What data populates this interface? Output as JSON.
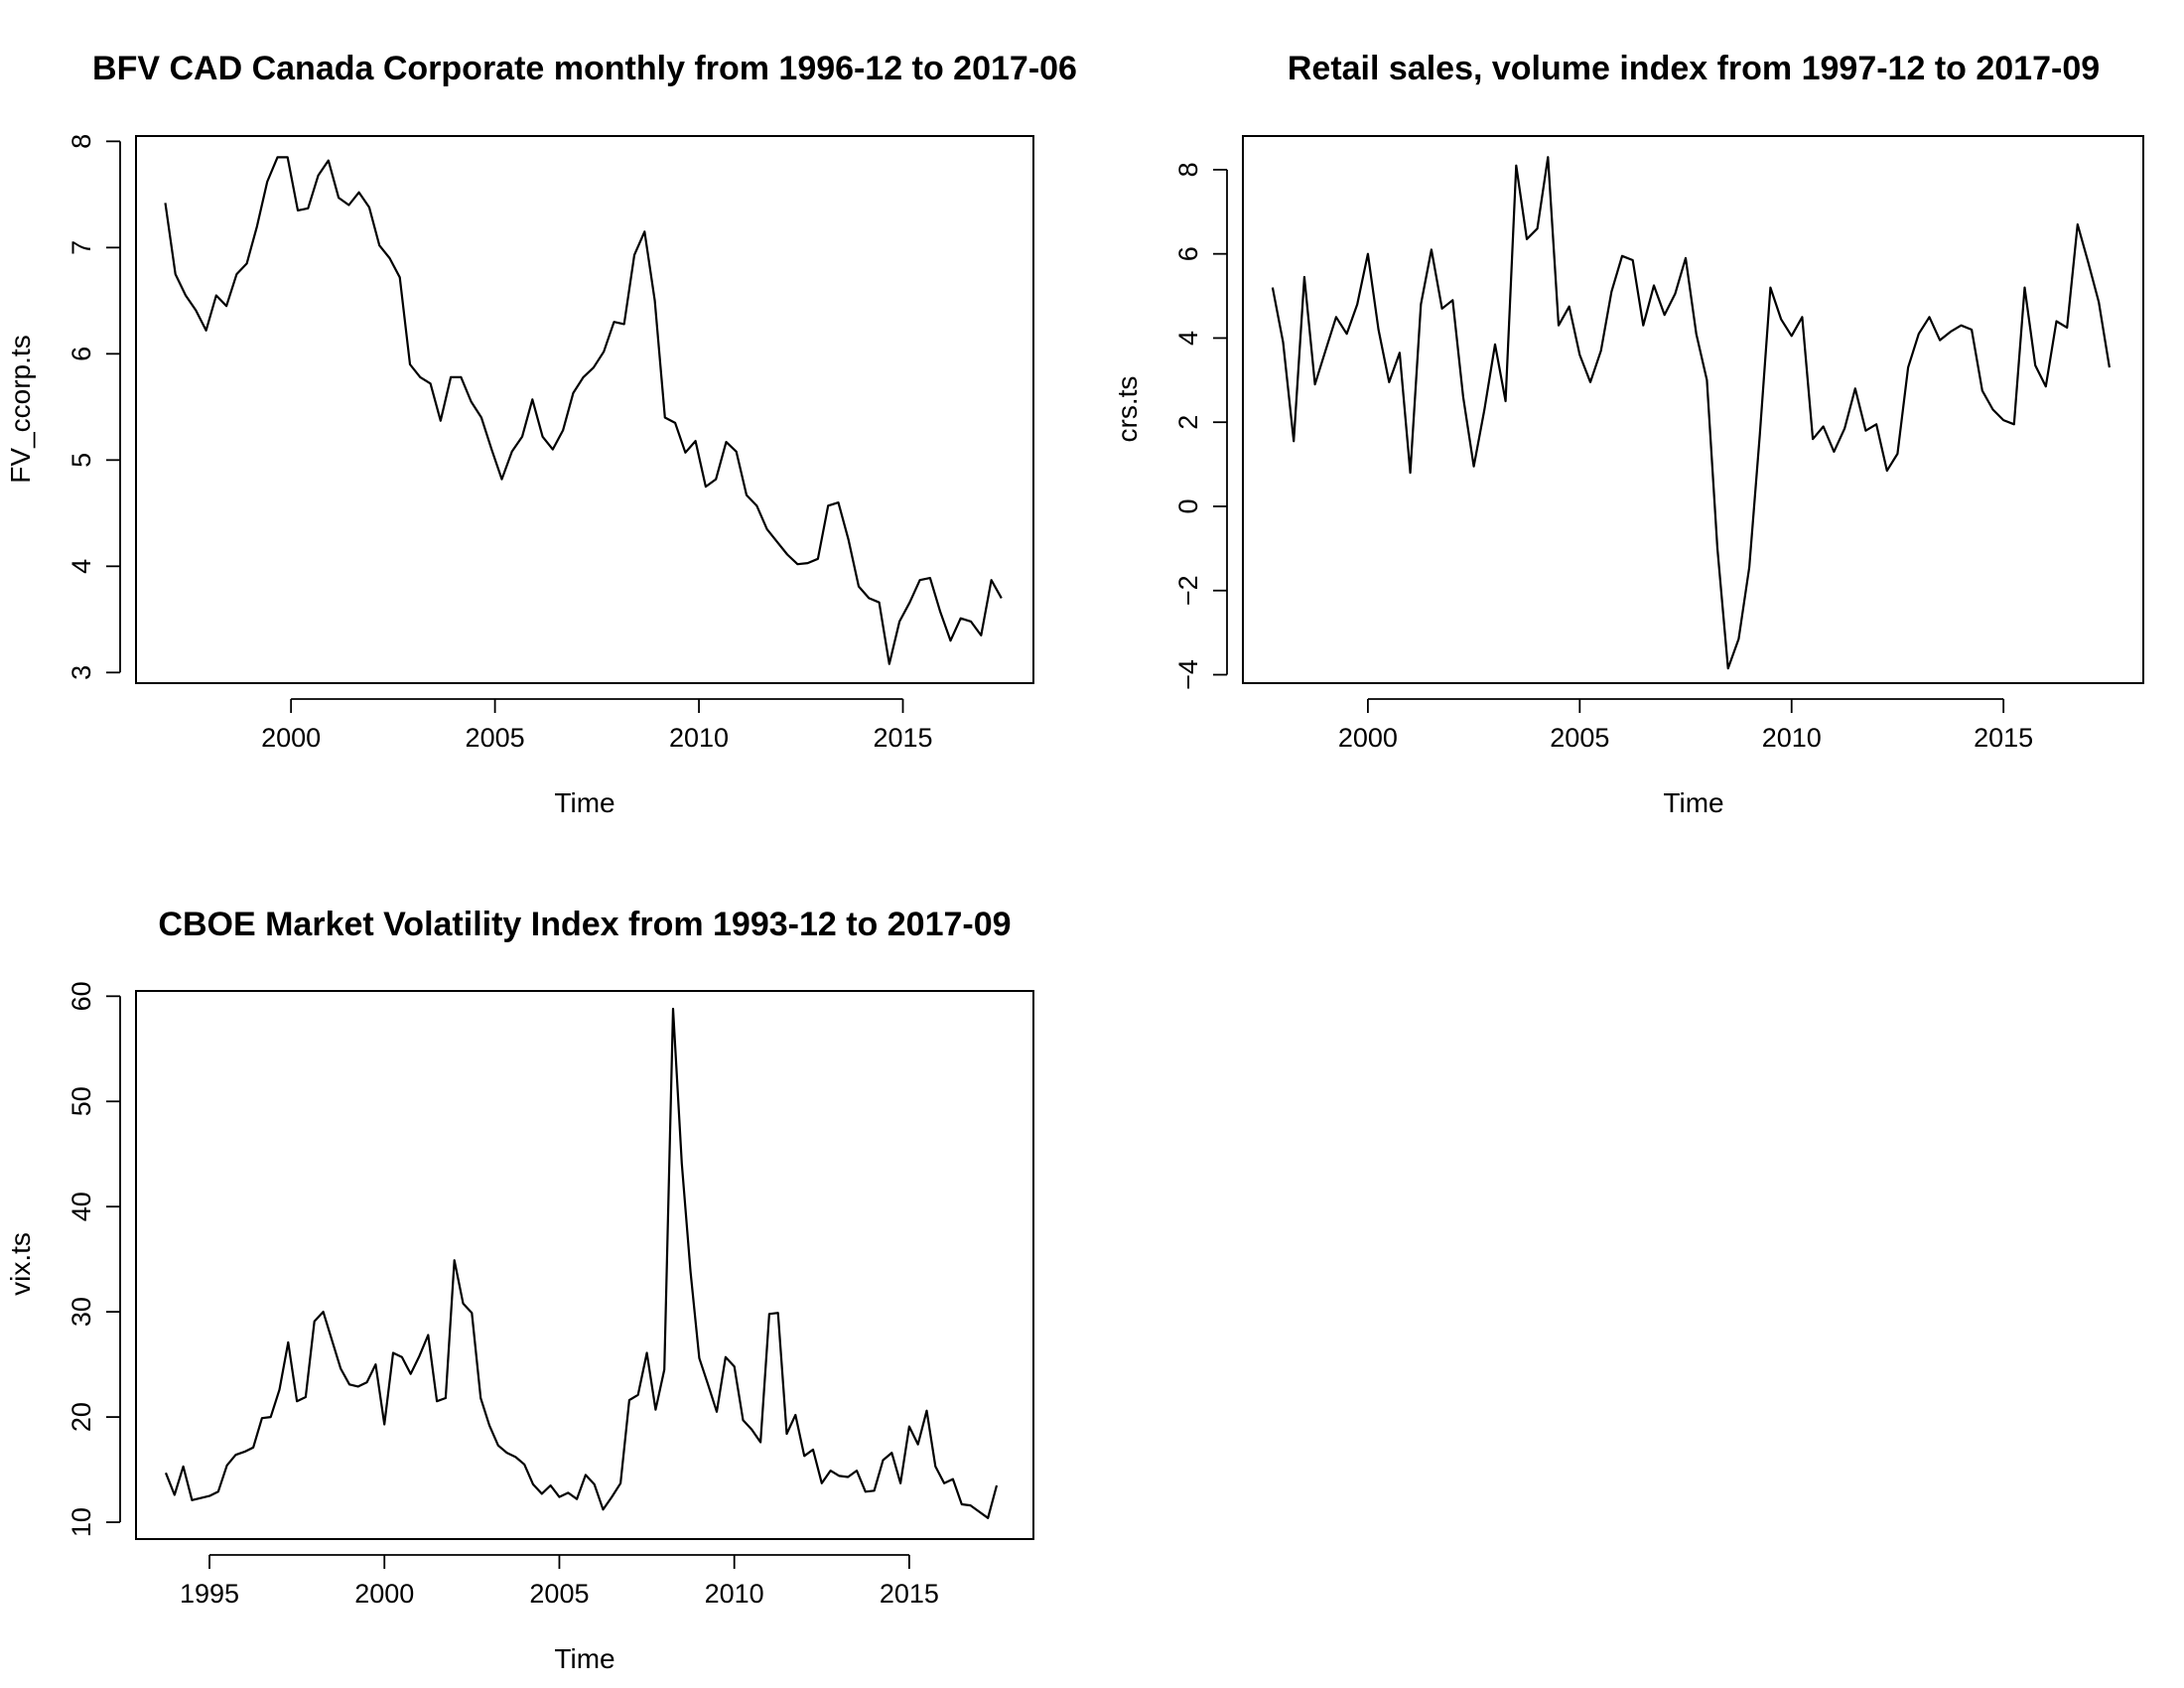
{
  "chart_data": [
    {
      "type": "line",
      "title": "BFV CAD Canada Corporate monthly from 1996-12 to 2017-06",
      "xlabel": "Time",
      "ylabel": "FV_ccorp.ts",
      "xlim": [
        1996.2,
        2018.2
      ],
      "ylim": [
        2.9,
        8.05
      ],
      "xticks": [
        2000,
        2005,
        2010,
        2015
      ],
      "yticks": [
        3,
        4,
        5,
        6,
        7,
        8
      ],
      "grid": false,
      "x_start": 1996.917,
      "x_step": 0.25,
      "values": [
        7.42,
        6.75,
        6.55,
        6.41,
        6.22,
        6.55,
        6.45,
        6.75,
        6.85,
        7.2,
        7.62,
        7.85,
        7.85,
        7.35,
        7.37,
        7.68,
        7.82,
        7.47,
        7.4,
        7.52,
        7.38,
        7.02,
        6.9,
        6.72,
        5.9,
        5.78,
        5.72,
        5.37,
        5.78,
        5.78,
        5.55,
        5.4,
        5.1,
        4.82,
        5.08,
        5.22,
        5.57,
        5.22,
        5.1,
        5.28,
        5.63,
        5.78,
        5.87,
        6.02,
        6.3,
        6.28,
        6.93,
        7.15,
        6.5,
        5.4,
        5.35,
        5.07,
        5.18,
        4.75,
        4.82,
        5.17,
        5.08,
        4.67,
        4.57,
        4.35,
        4.23,
        4.11,
        4.02,
        4.03,
        4.07,
        4.57,
        4.6,
        4.25,
        3.81,
        3.7,
        3.66,
        3.08,
        3.48,
        3.66,
        3.87,
        3.89,
        3.57,
        3.3,
        3.51,
        3.48,
        3.35,
        3.87,
        3.7
      ]
    },
    {
      "type": "line",
      "title": "Retail sales, volume index from 1997-12 to 2017-09",
      "xlabel": "Time",
      "ylabel": "crs.ts",
      "xlim": [
        1997.05,
        2018.3
      ],
      "ylim": [
        -4.2,
        8.8
      ],
      "xticks": [
        2000,
        2005,
        2010,
        2015
      ],
      "yticks": [
        -4,
        -2,
        0,
        2,
        4,
        6,
        8
      ],
      "grid": false,
      "x_start": 1997.75,
      "x_step": 0.25,
      "values": [
        5.2,
        3.9,
        1.55,
        5.45,
        2.9,
        3.7,
        4.5,
        4.1,
        4.8,
        6.0,
        4.2,
        2.95,
        3.65,
        0.8,
        4.8,
        6.1,
        4.7,
        4.9,
        2.6,
        0.95,
        2.3,
        3.85,
        2.5,
        8.1,
        6.35,
        6.6,
        8.3,
        4.3,
        4.75,
        3.6,
        2.95,
        3.7,
        5.1,
        5.95,
        5.85,
        4.3,
        5.25,
        4.55,
        5.05,
        5.9,
        4.1,
        3.0,
        -1.0,
        -3.85,
        -3.15,
        -1.45,
        1.7,
        5.2,
        4.45,
        4.05,
        4.5,
        1.6,
        1.9,
        1.3,
        1.85,
        2.8,
        1.8,
        1.95,
        0.85,
        1.25,
        3.3,
        4.1,
        4.5,
        3.95,
        4.15,
        4.3,
        4.2,
        2.75,
        2.3,
        2.05,
        1.95,
        5.2,
        3.35,
        2.85,
        4.4,
        4.25,
        6.7,
        5.8,
        4.85,
        3.3
      ]
    },
    {
      "type": "line",
      "title": "CBOE Market Volatility Index from 1993-12 to 2017-09",
      "xlabel": "Time",
      "ylabel": "vix.ts",
      "xlim": [
        1992.9,
        2018.55
      ],
      "ylim": [
        8.4,
        60.5
      ],
      "xticks": [
        1995,
        2000,
        2005,
        2010,
        2015
      ],
      "yticks": [
        10,
        20,
        30,
        40,
        50,
        60
      ],
      "grid": false,
      "x_start": 1993.75,
      "x_step": 0.25,
      "values": [
        14.7,
        12.6,
        15.3,
        12.1,
        12.3,
        12.5,
        12.9,
        15.4,
        16.4,
        16.7,
        17.1,
        19.9,
        20.0,
        22.6,
        27.1,
        21.5,
        21.9,
        29.1,
        30.0,
        27.3,
        24.6,
        23.1,
        22.9,
        23.3,
        25.0,
        19.3,
        26.1,
        25.7,
        24.1,
        25.8,
        27.8,
        21.5,
        21.8,
        34.9,
        30.8,
        29.9,
        21.8,
        19.2,
        17.3,
        16.6,
        16.2,
        15.5,
        13.6,
        12.7,
        13.5,
        12.4,
        12.8,
        12.2,
        14.5,
        13.6,
        11.2,
        12.4,
        13.7,
        21.6,
        22.1,
        26.1,
        20.7,
        24.5,
        58.8,
        44.1,
        33.8,
        25.6,
        23.1,
        20.5,
        25.7,
        24.8,
        19.7,
        18.8,
        17.6,
        29.8,
        29.9,
        18.4,
        20.2,
        16.3,
        16.9,
        13.7,
        14.9,
        14.4,
        14.3,
        14.9,
        12.9,
        13.0,
        15.9,
        16.6,
        13.7,
        19.1,
        17.4,
        20.6,
        15.3,
        13.7,
        14.1,
        11.7,
        11.6,
        11.0,
        10.4,
        13.5
      ]
    }
  ]
}
